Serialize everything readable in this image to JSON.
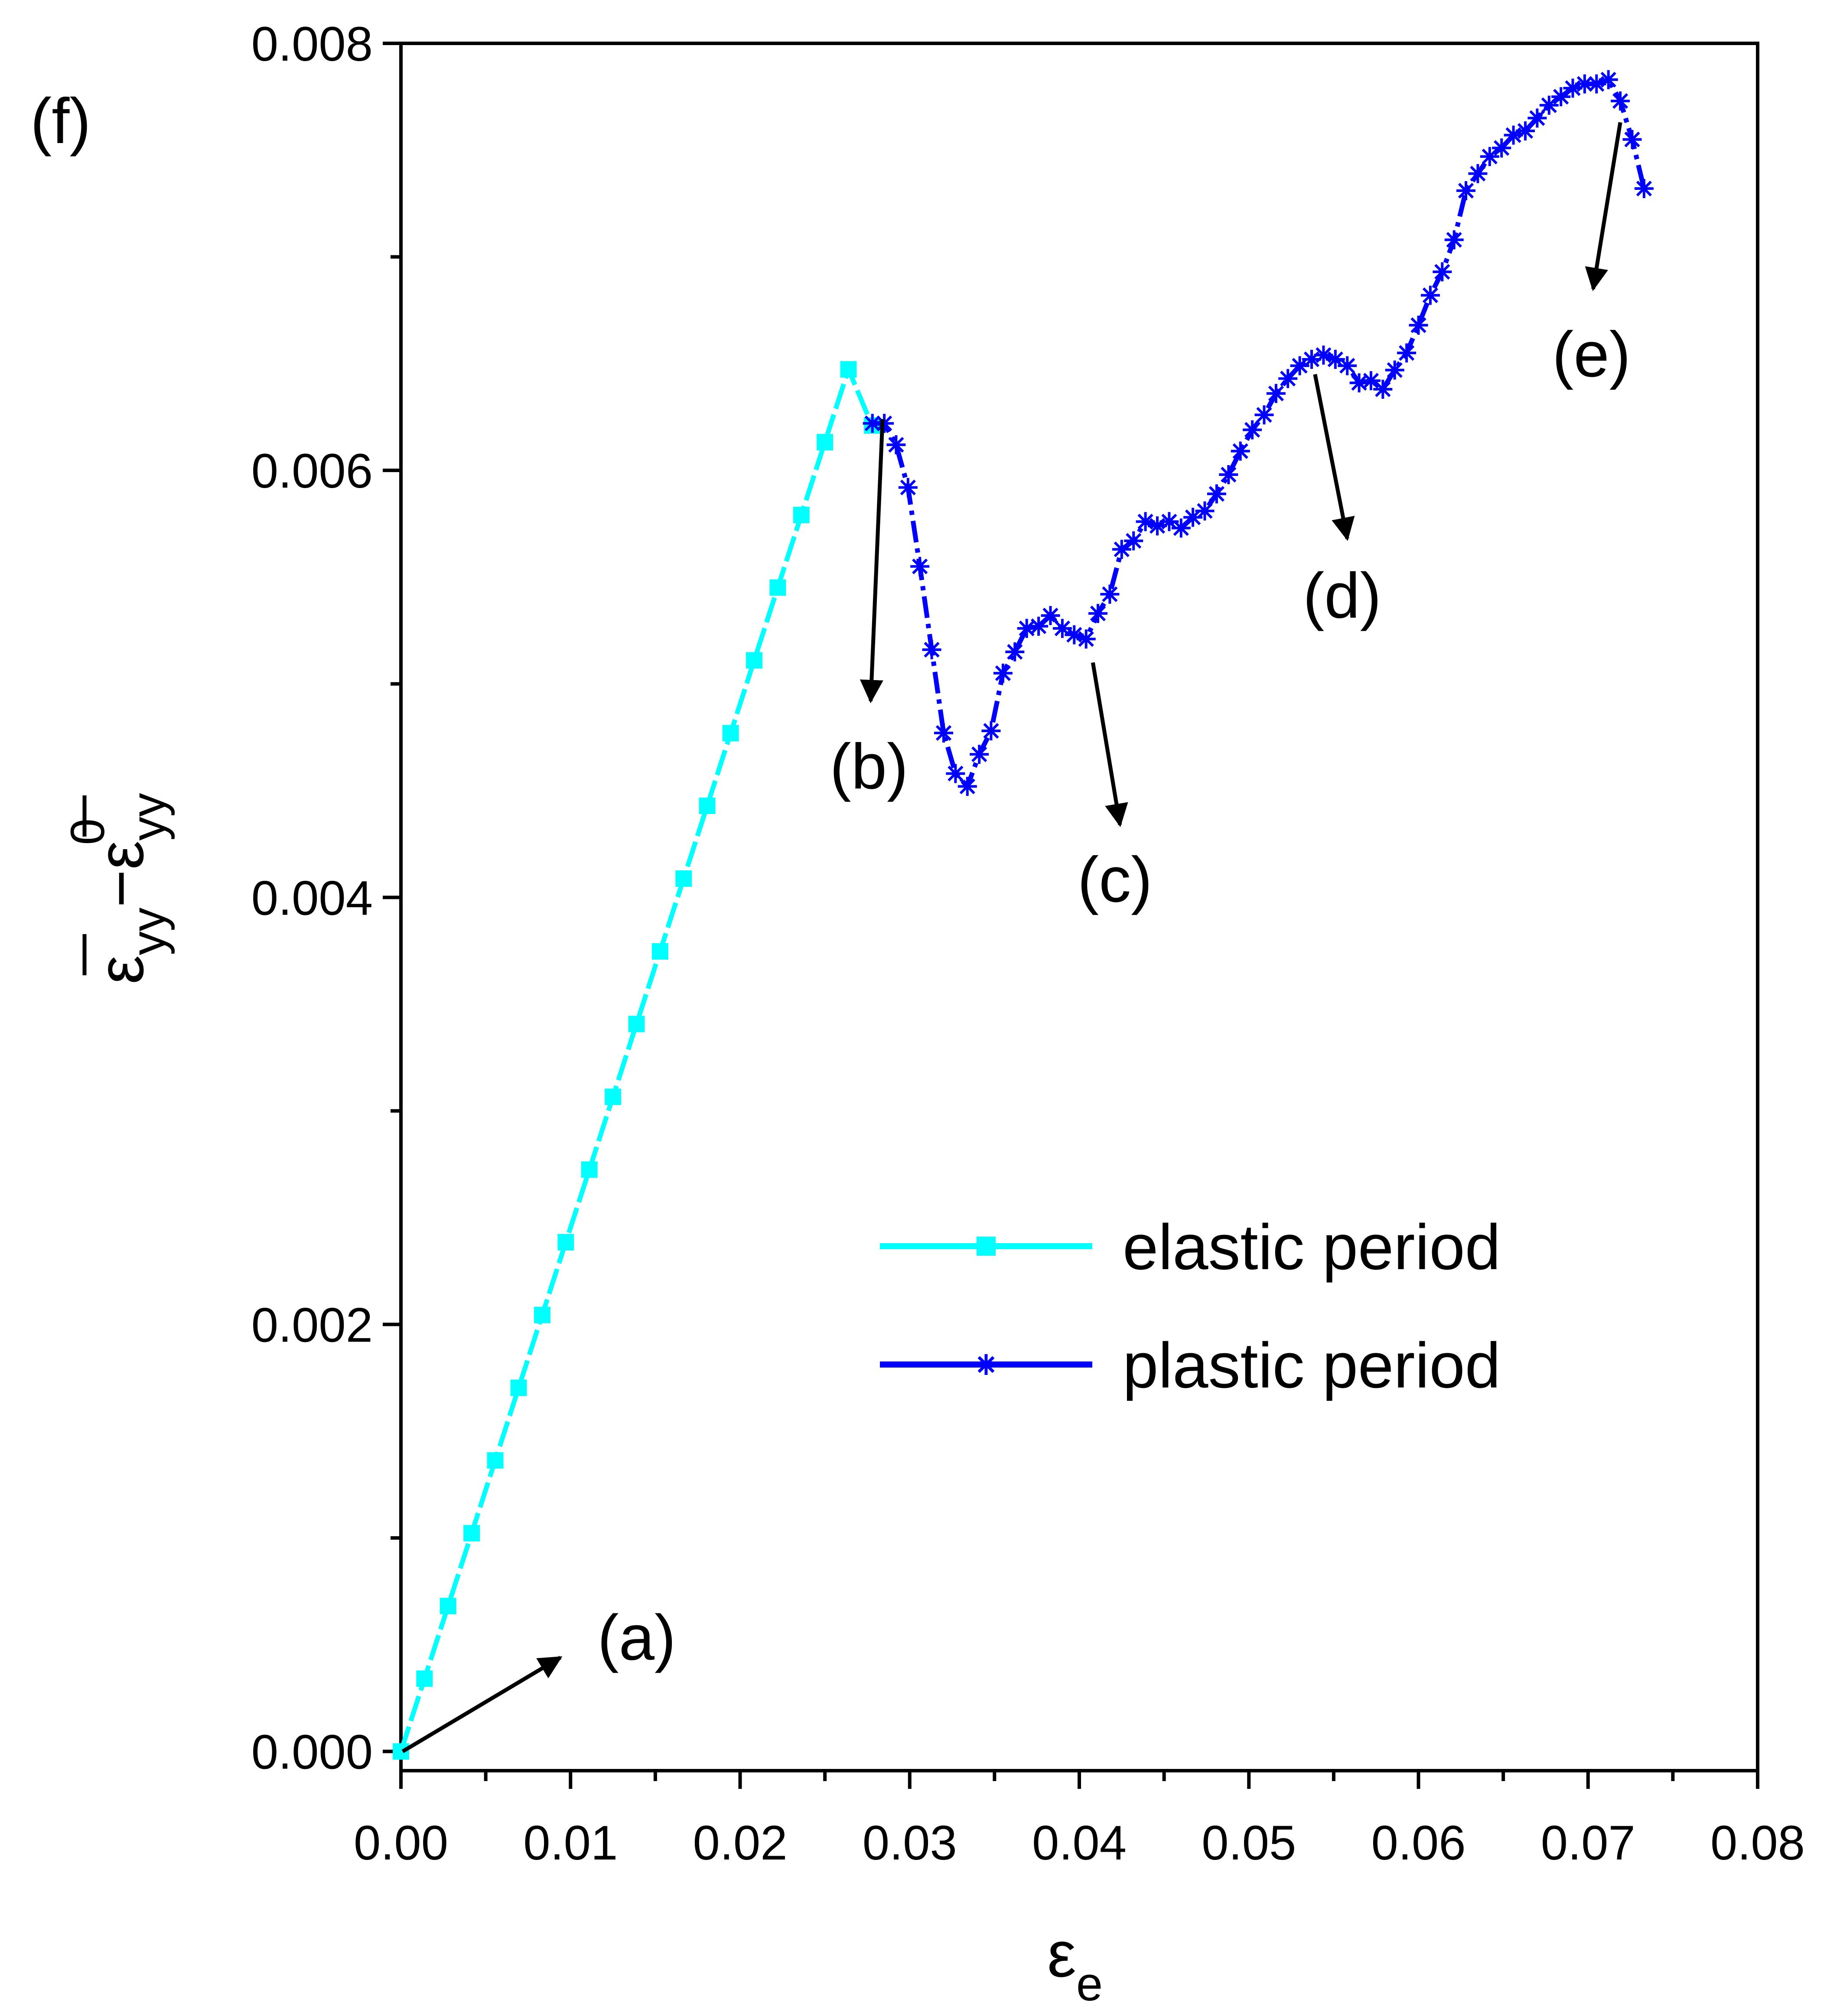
{
  "chart_data": {
    "type": "line",
    "title": "",
    "panel_label": "(f)",
    "xlabel": {
      "base": "ε",
      "sub": "e"
    },
    "ylabel": {
      "base1": "ε",
      "sub1": "yy",
      "minus": "−",
      "base2": "ε",
      "sub2": "yy",
      "sup2": "0"
    },
    "xlim": [
      0,
      0.08
    ],
    "ylim": [
      -9e-05,
      0.008
    ],
    "xticks": [
      0,
      0.01,
      0.02,
      0.03,
      0.04,
      0.05,
      0.06,
      0.07,
      0.08
    ],
    "xtick_labels": [
      "0.00",
      "0.01",
      "0.02",
      "0.03",
      "0.04",
      "0.05",
      "0.06",
      "0.07",
      "0.08"
    ],
    "yticks": [
      0,
      0.002,
      0.004,
      0.006,
      0.008
    ],
    "ytick_labels": [
      "0.000",
      "0.002",
      "0.004",
      "0.006",
      "0.008"
    ],
    "legend_position": "center-right",
    "grid": false,
    "series": [
      {
        "name": "elastic period",
        "color": "#00ffff",
        "marker": "square",
        "x": [
          0,
          0.00139,
          0.00278,
          0.00417,
          0.00556,
          0.00694,
          0.00833,
          0.00972,
          0.01111,
          0.0125,
          0.01389,
          0.01528,
          0.01667,
          0.01806,
          0.01944,
          0.02083,
          0.02222,
          0.02361,
          0.025,
          0.02639,
          0.02778
        ],
        "y": [
          0,
          0.000341,
          0.000681,
          0.001022,
          0.001363,
          0.001703,
          0.002044,
          0.002385,
          0.002725,
          0.003066,
          0.003407,
          0.003747,
          0.004088,
          0.004429,
          0.004769,
          0.00511,
          0.005451,
          0.005791,
          0.006132,
          0.006473,
          0.00621
        ]
      },
      {
        "name": "plastic period",
        "color": "#0000ff",
        "marker": "asterisk",
        "x": [
          0.0278,
          0.0285,
          0.0292,
          0.0299,
          0.0306,
          0.0313,
          0.032,
          0.0327,
          0.0334,
          0.0341,
          0.0348,
          0.0355,
          0.0362,
          0.0369,
          0.0376,
          0.0383,
          0.039,
          0.0397,
          0.0404,
          0.0411,
          0.0418,
          0.0425,
          0.0432,
          0.0439,
          0.0446,
          0.0453,
          0.046,
          0.0467,
          0.0474,
          0.0481,
          0.0488,
          0.0495,
          0.0502,
          0.0509,
          0.0516,
          0.0523,
          0.053,
          0.0537,
          0.0544,
          0.0551,
          0.0558,
          0.0565,
          0.0572,
          0.0579,
          0.0586,
          0.0593,
          0.06,
          0.0607,
          0.0614,
          0.0621,
          0.0628,
          0.0635,
          0.0642,
          0.0649,
          0.0656,
          0.0663,
          0.067,
          0.0677,
          0.0684,
          0.0691,
          0.0698,
          0.0705,
          0.0712,
          0.0719,
          0.0726,
          0.0733
        ],
        "y": [
          0.00622,
          0.00622,
          0.00612,
          0.00592,
          0.00555,
          0.00516,
          0.00477,
          0.00458,
          0.00452,
          0.00467,
          0.00478,
          0.00505,
          0.00515,
          0.00526,
          0.00527,
          0.00532,
          0.00526,
          0.00523,
          0.00521,
          0.00533,
          0.00542,
          0.00563,
          0.00567,
          0.00576,
          0.00574,
          0.00576,
          0.00573,
          0.00578,
          0.00581,
          0.00589,
          0.00598,
          0.00609,
          0.00619,
          0.00626,
          0.00636,
          0.00643,
          0.00649,
          0.00652,
          0.00654,
          0.00652,
          0.00649,
          0.00641,
          0.00642,
          0.00638,
          0.00647,
          0.00655,
          0.00668,
          0.00682,
          0.00693,
          0.00708,
          0.00731,
          0.00739,
          0.00747,
          0.00751,
          0.00757,
          0.00759,
          0.00765,
          0.00771,
          0.00775,
          0.00779,
          0.00781,
          0.00781,
          0.00783,
          0.00773,
          0.00755,
          0.00732
        ]
      }
    ],
    "annotations": [
      {
        "label": "(a)",
        "tail": [
          0.0001,
          0.0
        ],
        "head": [
          0.0094,
          0.00044
        ],
        "text_at": [
          0.0139,
          0.00043
        ]
      },
      {
        "label": "(b)",
        "tail": [
          0.0284,
          0.00624
        ],
        "head": [
          0.0277,
          0.00492
        ],
        "text_at": [
          0.0276,
          0.00451
        ]
      },
      {
        "label": "(c)",
        "tail": [
          0.0408,
          0.0051
        ],
        "head": [
          0.0424,
          0.00434
        ],
        "text_at": [
          0.0421,
          0.00398
        ]
      },
      {
        "label": "(d)",
        "tail": [
          0.0539,
          0.00645
        ],
        "head": [
          0.0558,
          0.00568
        ],
        "text_at": [
          0.0555,
          0.00531
        ]
      },
      {
        "label": "(e)",
        "tail": [
          0.0719,
          0.00763
        ],
        "head": [
          0.0703,
          0.00685
        ],
        "text_at": [
          0.0702,
          0.00644
        ]
      }
    ]
  }
}
